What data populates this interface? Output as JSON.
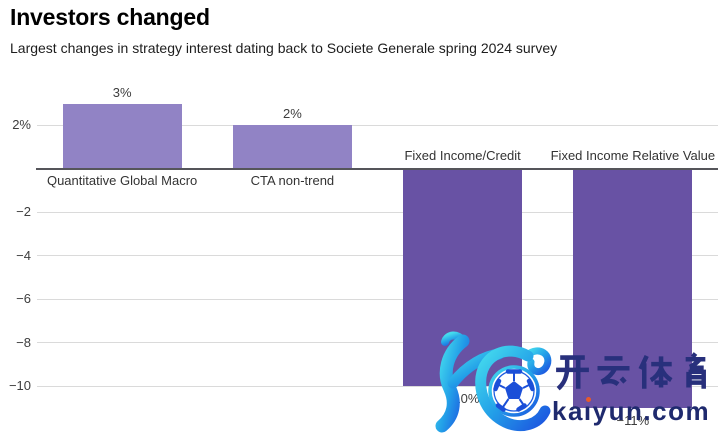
{
  "header": {
    "title": "Investors changed",
    "subtitle": "Largest changes in strategy interest dating back to Societe Generale spring 2024 survey"
  },
  "chart_data": {
    "type": "bar",
    "title": "Investors changed",
    "subtitle": "Largest changes in strategy interest dating back to Societe Generale spring 2024 survey",
    "categories": [
      "Quantitative Global Macro",
      "CTA non-trend",
      "Fixed Income/Credit",
      "Fixed Income Relative Value"
    ],
    "values": [
      3,
      2,
      -10,
      -11
    ],
    "value_labels": [
      "3%",
      "2%",
      "−10%",
      "−11%"
    ],
    "unit": "percent",
    "yticks": [
      {
        "value": 2,
        "label": "2%"
      },
      {
        "value": -2,
        "label": "−2"
      },
      {
        "value": -4,
        "label": "−4"
      },
      {
        "value": -6,
        "label": "−6"
      },
      {
        "value": -8,
        "label": "−8"
      },
      {
        "value": -10,
        "label": "−10"
      }
    ],
    "ylim": [
      -12.7,
      3.7
    ],
    "grid": true,
    "legend": "none",
    "bar_colors": {
      "positive": "#9183c5",
      "negative": "#6852a4"
    },
    "grid_color": "#dadada",
    "axis_color": "#55555a",
    "label_color": "#3d3d3d"
  },
  "watermark": {
    "brand_cn": "开云体育",
    "domain": "kaiyun.com",
    "logo": "kaiyun-k-football",
    "colors": {
      "brand_text": "#28307c",
      "domain_text": "#1f2a6e",
      "i_dot": "#e85a2a",
      "logo_gradient_start": "#45dcee",
      "logo_gradient_end": "#1c55e0"
    }
  }
}
